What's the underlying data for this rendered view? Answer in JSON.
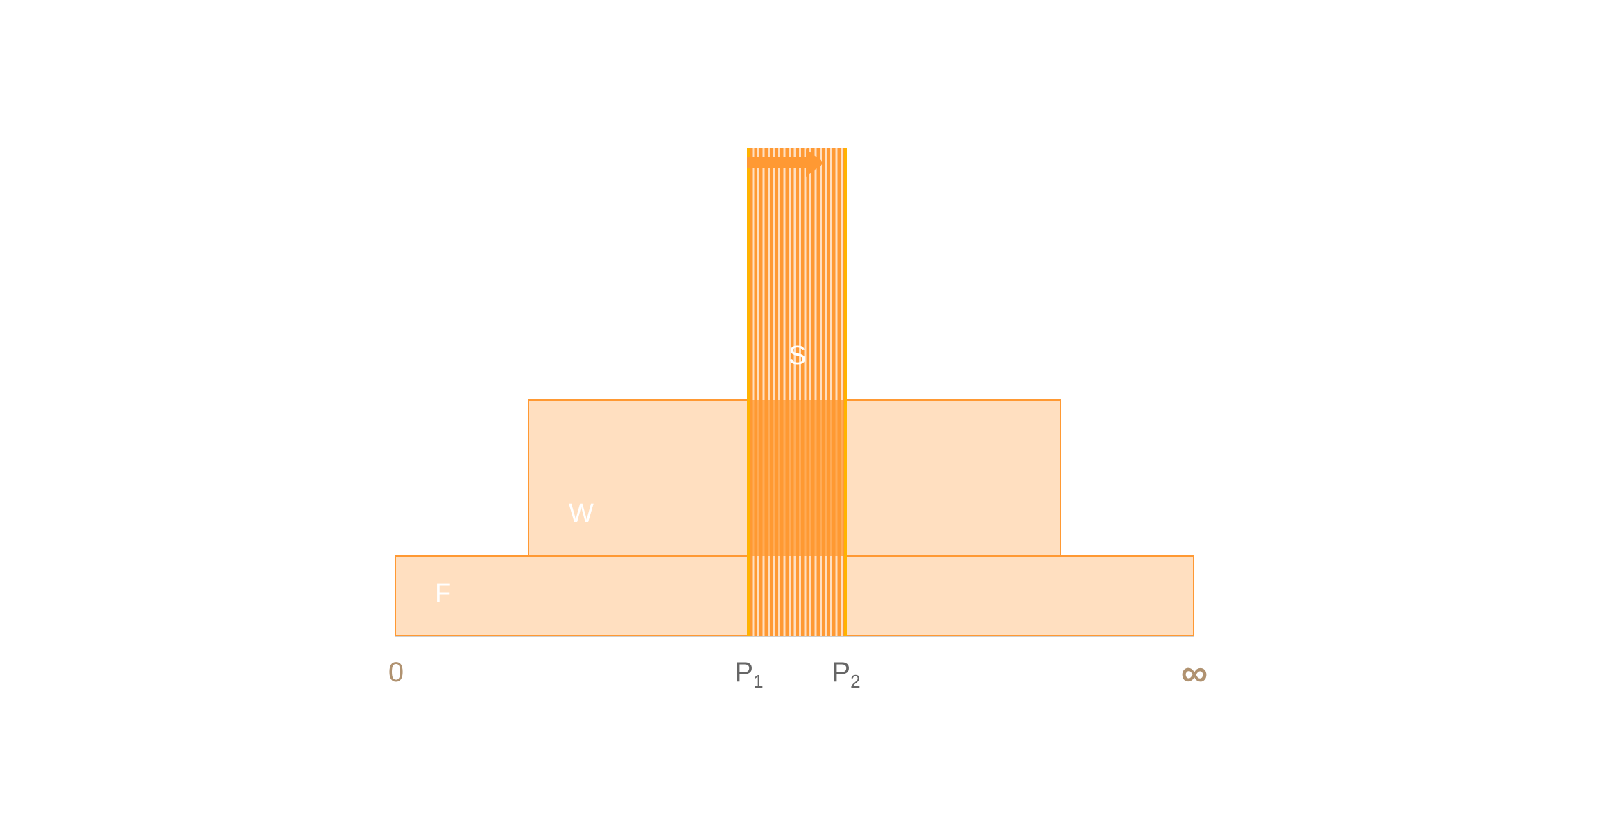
{
  "labels": {
    "origin": "0",
    "infinity": "∞",
    "p1": "P",
    "p1_sub": "1",
    "p2": "P",
    "p2_sub": "2"
  },
  "regions": {
    "F": "F",
    "W": "W",
    "S": "S"
  },
  "colors": {
    "fill_light": "#FFDFC0",
    "border": "#FF9933",
    "stripe_dark": "#FF9933",
    "stripe_edge": "#FFB300",
    "arrow": "#FF9933",
    "axis_label": "#B09270",
    "p_label": "#666666"
  },
  "icons": {
    "arrow": "arrow-right-icon"
  }
}
